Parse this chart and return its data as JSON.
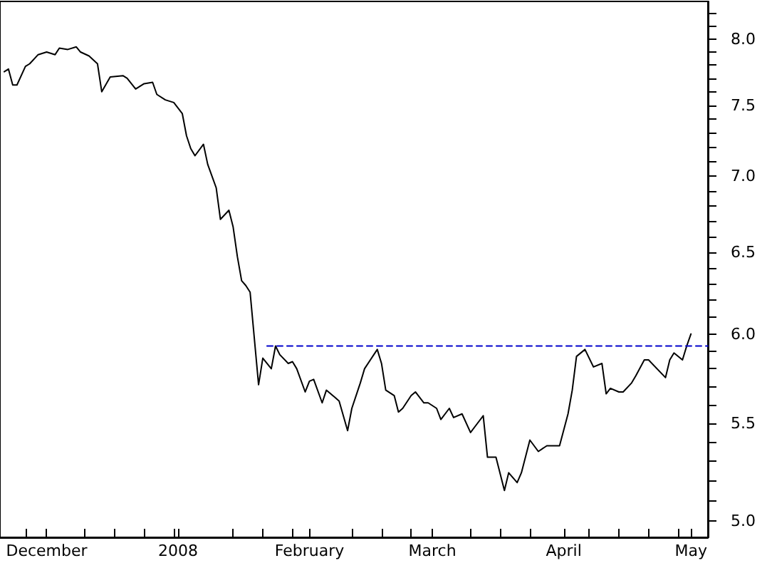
{
  "chart_data": {
    "type": "line",
    "log": "y",
    "grid": false,
    "marker": "none",
    "xlim": [
      "2007-11-20",
      "2008-05-05"
    ],
    "xticks": [
      {
        "value": "2007-11-26",
        "label": null
      },
      {
        "value": "2007-12-01",
        "label": "December"
      },
      {
        "value": "2007-12-10",
        "label": null
      },
      {
        "value": "2007-12-17",
        "label": null
      },
      {
        "value": "2007-12-24",
        "label": null
      },
      {
        "value": "2007-12-31",
        "label": null
      },
      {
        "value": "2008-01-01",
        "label": "2008"
      },
      {
        "value": "2008-01-14",
        "label": null
      },
      {
        "value": "2008-01-21",
        "label": null
      },
      {
        "value": "2008-01-28",
        "label": null
      },
      {
        "value": "2008-02-01",
        "label": "February"
      },
      {
        "value": "2008-02-11",
        "label": null
      },
      {
        "value": "2008-02-18",
        "label": null
      },
      {
        "value": "2008-02-25",
        "label": null
      },
      {
        "value": "2008-03-01",
        "label": "March"
      },
      {
        "value": "2008-03-10",
        "label": null
      },
      {
        "value": "2008-03-17",
        "label": null
      },
      {
        "value": "2008-03-24",
        "label": null
      },
      {
        "value": "2008-04-01",
        "label": "April"
      },
      {
        "value": "2008-04-07",
        "label": null
      },
      {
        "value": "2008-04-14",
        "label": null
      },
      {
        "value": "2008-04-21",
        "label": null
      },
      {
        "value": "2008-04-28",
        "label": null
      },
      {
        "value": "2008-05-01",
        "label": "May"
      }
    ],
    "ylim": [
      4.92,
      8.3
    ],
    "yticks": [
      {
        "value": 5,
        "label": "5.0"
      },
      {
        "value": 5.1,
        "label": null
      },
      {
        "value": 5.2,
        "label": null
      },
      {
        "value": 5.3,
        "label": null
      },
      {
        "value": 5.4,
        "label": null
      },
      {
        "value": 5.5,
        "label": "5.5"
      },
      {
        "value": 5.6,
        "label": null
      },
      {
        "value": 5.7,
        "label": null
      },
      {
        "value": 5.8,
        "label": null
      },
      {
        "value": 5.9,
        "label": null
      },
      {
        "value": 6,
        "label": "6.0"
      },
      {
        "value": 6.1,
        "label": null
      },
      {
        "value": 6.2,
        "label": null
      },
      {
        "value": 6.3,
        "label": null
      },
      {
        "value": 6.4,
        "label": null
      },
      {
        "value": 6.5,
        "label": "6.5"
      },
      {
        "value": 6.6,
        "label": null
      },
      {
        "value": 6.7,
        "label": null
      },
      {
        "value": 6.8,
        "label": null
      },
      {
        "value": 6.9,
        "label": null
      },
      {
        "value": 7,
        "label": "7.0"
      },
      {
        "value": 7.1,
        "label": null
      },
      {
        "value": 7.2,
        "label": null
      },
      {
        "value": 7.3,
        "label": null
      },
      {
        "value": 7.4,
        "label": null
      },
      {
        "value": 7.5,
        "label": "7.5"
      },
      {
        "value": 7.6,
        "label": null
      },
      {
        "value": 7.7,
        "label": null
      },
      {
        "value": 7.8,
        "label": null
      },
      {
        "value": 7.9,
        "label": null
      },
      {
        "value": 8,
        "label": "8.0"
      },
      {
        "value": 8.1,
        "label": null
      },
      {
        "value": 8.2,
        "label": null
      }
    ],
    "series": [
      {
        "color": "#000000",
        "line_style": "solid",
        "x": [
          "2007-11-21",
          "2007-11-22",
          "2007-11-23",
          "2007-11-24",
          "2007-11-26",
          "2007-11-27",
          "2007-11-29",
          "2007-12-01",
          "2007-12-03",
          "2007-12-04",
          "2007-12-06",
          "2007-12-08",
          "2007-12-09",
          "2007-12-11",
          "2007-12-13",
          "2007-12-14",
          "2007-12-16",
          "2007-12-19",
          "2007-12-20",
          "2007-12-22",
          "2007-12-24",
          "2007-12-26",
          "2007-12-27",
          "2007-12-29",
          "2007-12-31",
          "2008-01-02",
          "2008-01-03",
          "2008-01-04",
          "2008-01-05",
          "2008-01-07",
          "2008-01-08",
          "2008-01-10",
          "2008-01-11",
          "2008-01-13",
          "2008-01-14",
          "2008-01-15",
          "2008-01-16",
          "2008-01-17",
          "2008-01-18",
          "2008-01-20",
          "2008-01-21",
          "2008-01-23",
          "2008-01-24",
          "2008-01-25",
          "2008-01-27",
          "2008-01-28",
          "2008-01-29",
          "2008-01-31",
          "2008-02-01",
          "2008-02-02",
          "2008-02-04",
          "2008-02-05",
          "2008-02-07",
          "2008-02-08",
          "2008-02-10",
          "2008-02-11",
          "2008-02-13",
          "2008-02-14",
          "2008-02-17",
          "2008-02-18",
          "2008-02-19",
          "2008-02-21",
          "2008-02-22",
          "2008-02-23",
          "2008-02-25",
          "2008-02-26",
          "2008-02-28",
          "2008-02-29",
          "2008-03-02",
          "2008-03-03",
          "2008-03-05",
          "2008-03-06",
          "2008-03-08",
          "2008-03-10",
          "2008-03-11",
          "2008-03-13",
          "2008-03-14",
          "2008-03-16",
          "2008-03-18",
          "2008-03-19",
          "2008-03-21",
          "2008-03-22",
          "2008-03-24",
          "2008-03-26",
          "2008-03-28",
          "2008-03-31",
          "2008-04-02",
          "2008-04-03",
          "2008-04-04",
          "2008-04-06",
          "2008-04-08",
          "2008-04-10",
          "2008-04-11",
          "2008-04-12",
          "2008-04-14",
          "2008-04-15",
          "2008-04-17",
          "2008-04-18",
          "2008-04-20",
          "2008-04-21",
          "2008-04-25",
          "2008-04-26",
          "2008-04-27",
          "2008-04-29",
          "2008-04-30",
          "2008-05-01"
        ],
        "values": [
          7.75,
          7.77,
          7.65,
          7.65,
          7.79,
          7.81,
          7.88,
          7.9,
          7.88,
          7.93,
          7.92,
          7.94,
          7.9,
          7.87,
          7.81,
          7.6,
          7.71,
          7.72,
          7.7,
          7.62,
          7.66,
          7.67,
          7.58,
          7.54,
          7.52,
          7.44,
          7.28,
          7.19,
          7.14,
          7.22,
          7.08,
          6.92,
          6.71,
          6.77,
          6.66,
          6.47,
          6.32,
          6.29,
          6.25,
          5.71,
          5.86,
          5.8,
          5.93,
          5.88,
          5.83,
          5.84,
          5.8,
          5.67,
          5.73,
          5.74,
          5.61,
          5.68,
          5.64,
          5.62,
          5.46,
          5.58,
          5.72,
          5.8,
          5.91,
          5.83,
          5.68,
          5.65,
          5.56,
          5.58,
          5.65,
          5.67,
          5.61,
          5.61,
          5.58,
          5.52,
          5.58,
          5.53,
          5.55,
          5.45,
          5.48,
          5.54,
          5.32,
          5.32,
          5.15,
          5.24,
          5.19,
          5.24,
          5.41,
          5.35,
          5.38,
          5.38,
          5.55,
          5.68,
          5.87,
          5.91,
          5.81,
          5.83,
          5.66,
          5.69,
          5.67,
          5.67,
          5.72,
          5.76,
          5.85,
          5.85,
          5.75,
          5.85,
          5.89,
          5.85,
          5.93,
          6.0
        ]
      },
      {
        "color": "#0000cc",
        "line_style": "dashed",
        "x": [
          "2008-01-22",
          "2008-05-05"
        ],
        "values": [
          5.93,
          5.93
        ]
      }
    ]
  }
}
